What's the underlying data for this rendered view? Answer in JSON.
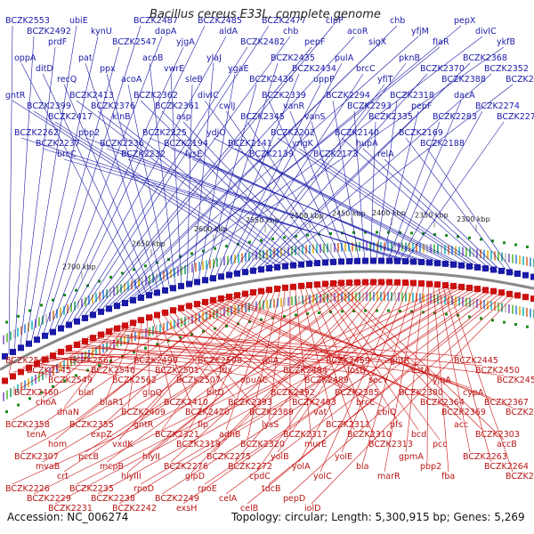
{
  "title": "Bacillus cereus E33L, complete genome",
  "accession_text": "Accession: NC_006274",
  "topology_text": "Topology: circular; Length: 5,300,915 bp; Genes: 5,269",
  "colors": {
    "forward": "#1a1aa8",
    "reverse": "#cc1010",
    "backbone": "#888888",
    "orf_ticks": "#1a8a1a"
  },
  "scale_labels": [
    "2300 kbp",
    "2350 kbp",
    "2400 kbp",
    "2450 kbp",
    "2500 kbp",
    "2550 kbp",
    "2600 kbp",
    "2650 kbp",
    "2700 kbp"
  ],
  "forward_genes": [
    "BCZK2553",
    "BCZK2492",
    "prdF",
    "ubiE",
    "kynU",
    "BCZK2547",
    "BCZK2487",
    "dapA",
    "yjgA",
    "BCZK2485",
    "aldA",
    "BCZK2482",
    "BCZK2477",
    "chb",
    "pepF",
    "clpP",
    "acoR",
    "sigX",
    "chb",
    "yfjM",
    "fIaR",
    "pepX",
    "divIC",
    "ykfB",
    "oppA",
    "ditD",
    "recQ",
    "pat",
    "ppx",
    "acoA",
    "acoB",
    "vwrE",
    "sleB",
    "ylaJ",
    "ygaE",
    "BCZK2436",
    "BCZK2435",
    "BCZK2434",
    "uppP",
    "pulA",
    "brcC",
    "yfiT",
    "pknB",
    "BCZK2370",
    "BCZK2388",
    "BCZK2368",
    "BCZK2352",
    "BCZK2406",
    "gntR",
    "BCZK2399",
    "BCZK2417",
    "BCZK2413",
    "BCZK2376",
    "kinB",
    "BCZK2362",
    "BCZK2361",
    "asp",
    "divIC",
    "cwlJ",
    "BCZK2345",
    "BCZK2339",
    "vanR",
    "vanS",
    "BCZK2294",
    "BCZK2293",
    "BCZK2335",
    "BCZK2318",
    "pepF",
    "BCZK2283",
    "dacA",
    "BCZK2274",
    "BCZK2271",
    "BCZK2262",
    "BCZK2237",
    "brcC",
    "pbp2",
    "BCZK2236",
    "BCZK2232",
    "BCZK2225",
    "BCZK2194",
    "lysE",
    "ydjO",
    "BCZK2141",
    "BCZK2139",
    "BCZK2202",
    "yngK",
    "BCZK2173",
    "BCZK2140",
    "hupA",
    "relA",
    "BCZK2169",
    "BCZK2188"
  ],
  "reverse_genes": [
    "BCZK2544",
    "BCZK2545",
    "BCZK2549",
    "BCZK2561",
    "BCZK2546",
    "BCZK2562",
    "BCZK2499",
    "BCZK2501",
    "BCZK2507",
    "BCZK2508",
    "fdx",
    "opuAC",
    "rpiA",
    "BCZK2484",
    "BCZK2489",
    "BCZK2459",
    "fosB",
    "secY",
    "gntR",
    "estA",
    "yjqA",
    "BCZK2445",
    "BCZK2450",
    "BCZK2451",
    "BCZK2460",
    "choA",
    "dnaN",
    "blaI",
    "blaR1",
    "BCZK2409",
    "glpQ",
    "BCZK2410",
    "BCZK2420",
    "bltD",
    "BCZK2393",
    "BCZK2389",
    "BCZK2392",
    "BCZK2403",
    "vat",
    "BCZK2385",
    "brcC",
    "cbiQ",
    "BCZK2380",
    "BCZK2364",
    "BCZK2369",
    "cypA",
    "BCZK2367",
    "BCZK2365",
    "BCZK2358",
    "tenA",
    "hom",
    "BCZK2355",
    "expZ",
    "vxdK",
    "gntR",
    "BCZK2321",
    "BCZK2319",
    "flp",
    "adhB",
    "BCZK2320",
    "lysS",
    "BCZK2317",
    "murE",
    "BCZK2311",
    "BCZK2310",
    "BCZK2313",
    "pfs",
    "bcd",
    "pcc",
    "acc",
    "BCZK2303",
    "accB",
    "BCZK2307",
    "mvaB",
    "crt",
    "pccB",
    "mcpB",
    "hlyIII",
    "hlyII",
    "BCZK2276",
    "glpD",
    "BCZK2275",
    "BCZK2272",
    "cpdC",
    "yolB",
    "yolA",
    "yolC",
    "yolE",
    "bla",
    "marR",
    "gpmA",
    "pbp2",
    "fba",
    "BCZK2263",
    "BCZK2264",
    "BCZK2266",
    "BCZK2226",
    "BCZK2229",
    "BCZK2231",
    "BCZK2235",
    "BCZK2238",
    "BCZK2242",
    "rpoD",
    "BCZK2249",
    "exsH",
    "rpoE",
    "celA",
    "celB",
    "tdcB",
    "pepD",
    "iolD"
  ]
}
